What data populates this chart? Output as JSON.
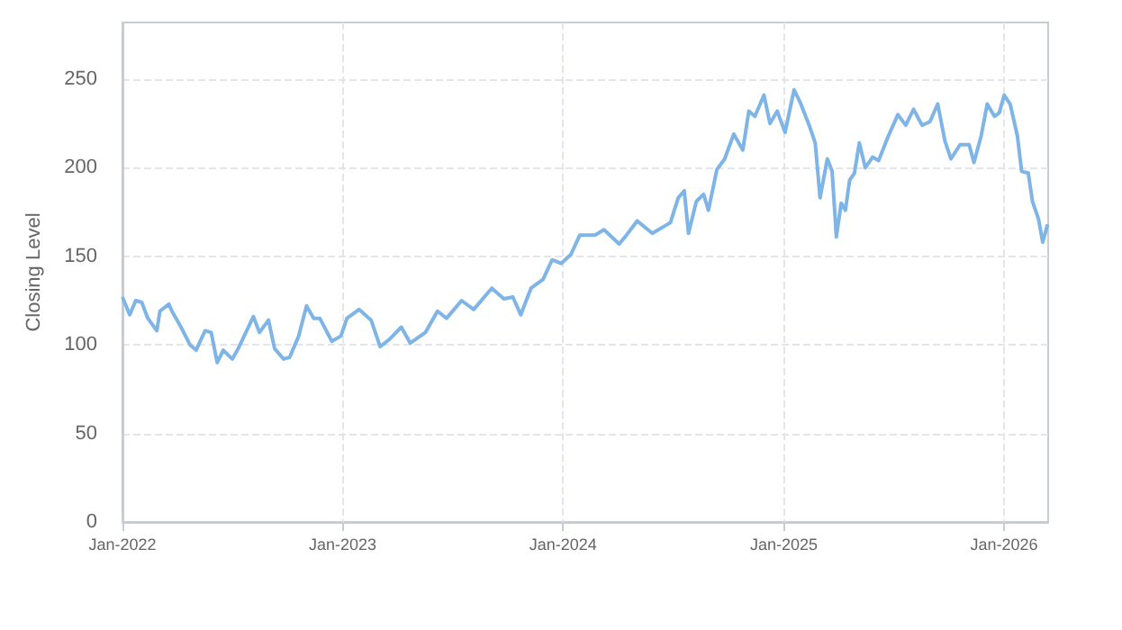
{
  "chart_data": {
    "type": "line",
    "ylabel": "Closing Level",
    "color": "#7eb5e6",
    "grid": true,
    "marker": "none",
    "line_style": "solid",
    "xlim": [
      "2022-01-01",
      "2026-03-15"
    ],
    "xticks": [
      {
        "value": "2022-01-01",
        "label": "Jan-2022"
      },
      {
        "value": "2023-01-01",
        "label": "Jan-2023"
      },
      {
        "value": "2024-01-01",
        "label": "Jan-2024"
      },
      {
        "value": "2025-01-01",
        "label": "Jan-2025"
      },
      {
        "value": "2026-01-01",
        "label": "Jan-2026"
      }
    ],
    "ylim": [
      0,
      282
    ],
    "yticks": [
      0,
      50,
      100,
      150,
      200,
      250
    ],
    "x": [
      "2022-01-01",
      "2022-01-13",
      "2022-01-23",
      "2022-02-02",
      "2022-02-12",
      "2022-02-27",
      "2022-03-04",
      "2022-03-19",
      "2022-03-24",
      "2022-04-08",
      "2022-04-23",
      "2022-05-03",
      "2022-05-18",
      "2022-05-28",
      "2022-06-07",
      "2022-06-17",
      "2022-07-02",
      "2022-07-12",
      "2022-08-06",
      "2022-08-16",
      "2022-08-31",
      "2022-09-10",
      "2022-09-25",
      "2022-10-05",
      "2022-10-20",
      "2022-11-02",
      "2022-11-14",
      "2022-11-24",
      "2022-12-14",
      "2022-12-29",
      "2023-01-08",
      "2023-01-28",
      "2023-02-17",
      "2023-03-04",
      "2023-03-19",
      "2023-04-08",
      "2023-04-23",
      "2023-05-18",
      "2023-06-07",
      "2023-06-22",
      "2023-07-17",
      "2023-08-06",
      "2023-09-05",
      "2023-09-25",
      "2023-10-10",
      "2023-10-23",
      "2023-11-09",
      "2023-11-29",
      "2023-12-14",
      "2023-12-29",
      "2024-01-14",
      "2024-01-29",
      "2024-02-23",
      "2024-03-09",
      "2024-04-03",
      "2024-04-13",
      "2024-05-03",
      "2024-05-28",
      "2024-06-27",
      "2024-07-10",
      "2024-07-20",
      "2024-07-27",
      "2024-08-09",
      "2024-08-21",
      "2024-08-29",
      "2024-09-12",
      "2024-09-25",
      "2024-10-10",
      "2024-10-25",
      "2024-11-04",
      "2024-11-14",
      "2024-11-29",
      "2024-12-09",
      "2024-12-21",
      "2025-01-03",
      "2025-01-18",
      "2025-01-28",
      "2025-02-12",
      "2025-02-22",
      "2025-03-02",
      "2025-03-14",
      "2025-03-22",
      "2025-03-29",
      "2025-04-06",
      "2025-04-13",
      "2025-04-20",
      "2025-04-28",
      "2025-05-06",
      "2025-05-16",
      "2025-05-28",
      "2025-06-07",
      "2025-06-22",
      "2025-07-09",
      "2025-07-22",
      "2025-08-04",
      "2025-08-18",
      "2025-08-31",
      "2025-09-13",
      "2025-09-25",
      "2025-10-05",
      "2025-10-20",
      "2025-11-04",
      "2025-11-12",
      "2025-11-24",
      "2025-12-04",
      "2025-12-16",
      "2025-12-24",
      "2026-01-01",
      "2026-01-11",
      "2026-01-23",
      "2026-01-30",
      "2026-02-10",
      "2026-02-17",
      "2026-02-27",
      "2026-03-06",
      "2026-03-14"
    ],
    "values": [
      127,
      117,
      125,
      124,
      115,
      108,
      119,
      123,
      119,
      110,
      100,
      97,
      108,
      107,
      90,
      97,
      92,
      98,
      116,
      107,
      114,
      98,
      92,
      93,
      105,
      122,
      115,
      115,
      102,
      105,
      115,
      120,
      114,
      99,
      103,
      110,
      101,
      107,
      119,
      115,
      125,
      120,
      132,
      126,
      127,
      117,
      132,
      137,
      148,
      146,
      151,
      162,
      162,
      165,
      157,
      161,
      170,
      163,
      169,
      183,
      187,
      163,
      181,
      185,
      176,
      199,
      205,
      219,
      210,
      232,
      229,
      241,
      225,
      232,
      220,
      244,
      237,
      224,
      214,
      183,
      205,
      198,
      161,
      180,
      176,
      193,
      197,
      214,
      200,
      206,
      204,
      217,
      230,
      224,
      233,
      224,
      226,
      236,
      215,
      205,
      213,
      213,
      203,
      218,
      236,
      229,
      231,
      241,
      236,
      218,
      198,
      197,
      181,
      171,
      158,
      168
    ]
  }
}
